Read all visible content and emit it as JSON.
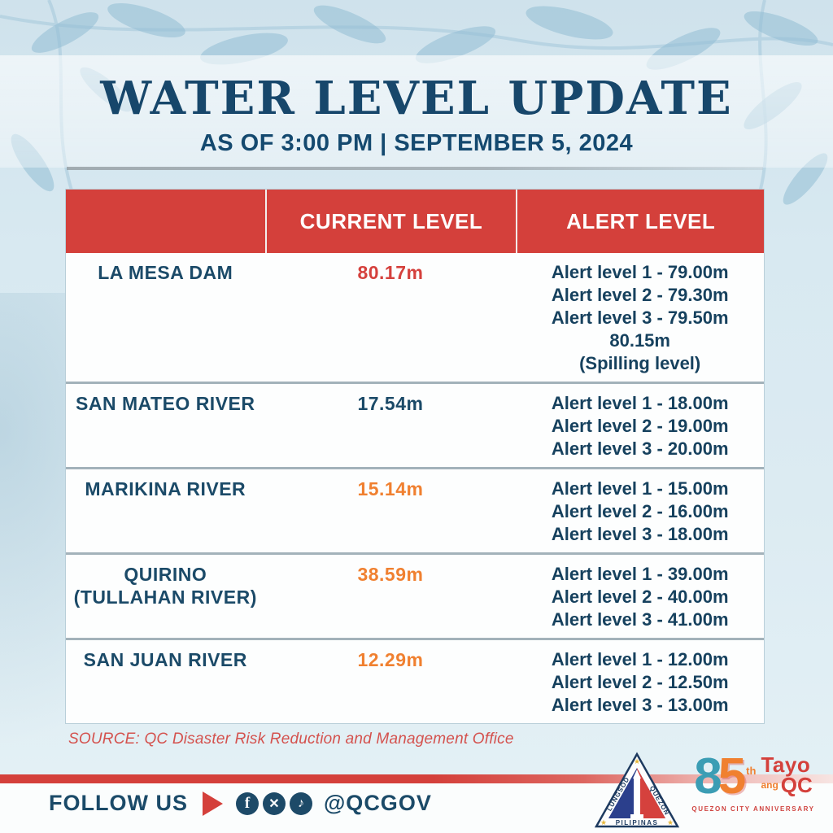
{
  "header": {
    "title": "WATER LEVEL UPDATE",
    "subtitle": "AS OF 3:00 PM | SEPTEMBER 5, 2024"
  },
  "table": {
    "columns": [
      "",
      "CURRENT LEVEL",
      "ALERT LEVEL"
    ],
    "rows": [
      {
        "station_lines": [
          "LA MESA DAM"
        ],
        "current_level": "80.17m",
        "value_color": "#d5413d",
        "alert_lines": [
          "Alert level 1 - 79.00m",
          "Alert level 2 - 79.30m",
          "Alert level 3 - 79.50m",
          "80.15m",
          "(Spilling level)"
        ]
      },
      {
        "station_lines": [
          "SAN MATEO RIVER"
        ],
        "current_level": "17.54m",
        "value_color": "#1b4a68",
        "alert_lines": [
          "Alert level 1 - 18.00m",
          "Alert level 2 - 19.00m",
          "Alert level 3 - 20.00m"
        ]
      },
      {
        "station_lines": [
          "MARIKINA RIVER"
        ],
        "current_level": "15.14m",
        "value_color": "#f08030",
        "alert_lines": [
          "Alert level 1 - 15.00m",
          "Alert level 2 - 16.00m",
          "Alert level 3 - 18.00m"
        ]
      },
      {
        "station_lines": [
          "QUIRINO",
          "(TULLAHAN RIVER)"
        ],
        "current_level": "38.59m",
        "value_color": "#f08030",
        "alert_lines": [
          "Alert level 1 - 39.00m",
          "Alert level 2 - 40.00m",
          "Alert level 3 - 41.00m"
        ]
      },
      {
        "station_lines": [
          "SAN JUAN RIVER"
        ],
        "current_level": "12.29m",
        "value_color": "#f08030",
        "alert_lines": [
          "Alert level 1 - 12.00m",
          "Alert level 2 - 12.50m",
          "Alert level 3 - 13.00m"
        ]
      }
    ]
  },
  "source": "SOURCE: QC Disaster Risk Reduction and Management Office",
  "footer": {
    "follow_label": "FOLLOW US",
    "handle": "@QCGOV",
    "social_icons": [
      "facebook-icon",
      "x-icon",
      "tiktok-icon"
    ],
    "facebook_glyph": "f",
    "x_glyph": "✕",
    "tiktok_glyph": "♪"
  },
  "logos": {
    "qc_seal": {
      "left_text": "LUNGSOD",
      "right_text": "QUEZON",
      "bottom_text": "PILIPINAS"
    },
    "anniversary": {
      "digit_8": "8",
      "digit_5": "5",
      "suffix": "th",
      "tayo": "Tayo",
      "ang": "ang",
      "qc": "QC",
      "caption": "QUEZON CITY ANNIVERSARY"
    }
  },
  "colors": {
    "header_red": "#d4403b",
    "navy": "#1b4a68",
    "orange": "#f08030",
    "alert_red": "#d5413d",
    "background_blue": "#d8e9f1"
  }
}
